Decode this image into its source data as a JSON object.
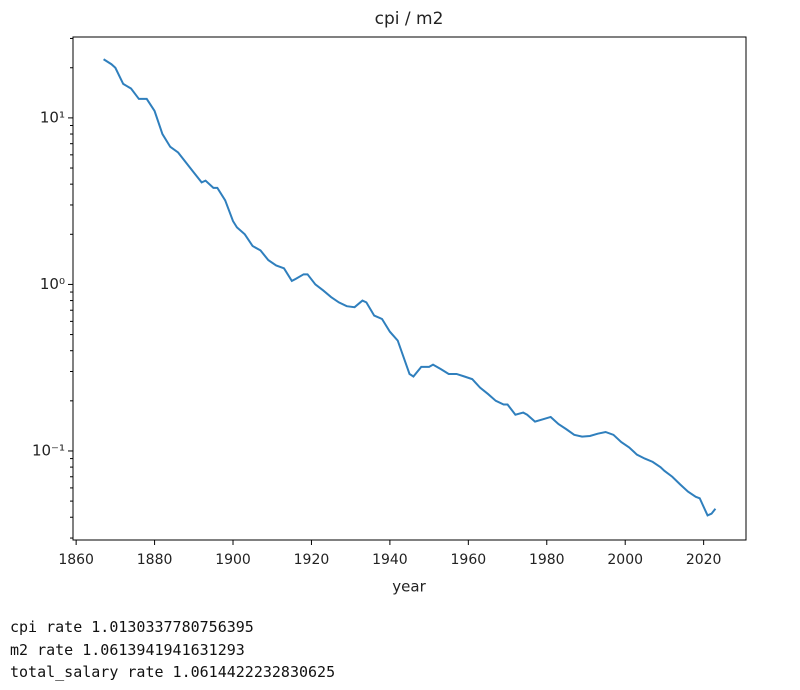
{
  "chart_data": {
    "type": "line",
    "title": "cpi / m2",
    "x_label": "year",
    "log_y": true,
    "color": "#2f7fbd",
    "x": [
      1867,
      1869,
      1870,
      1872,
      1874,
      1876,
      1878,
      1880,
      1882,
      1884,
      1886,
      1888,
      1890,
      1892,
      1893,
      1895,
      1896,
      1898,
      1900,
      1901,
      1903,
      1905,
      1907,
      1909,
      1911,
      1913,
      1915,
      1916,
      1918,
      1919,
      1921,
      1923,
      1925,
      1927,
      1929,
      1931,
      1933,
      1934,
      1936,
      1938,
      1940,
      1942,
      1945,
      1946,
      1948,
      1950,
      1951,
      1953,
      1955,
      1957,
      1959,
      1961,
      1963,
      1965,
      1967,
      1969,
      1970,
      1972,
      1974,
      1975,
      1977,
      1979,
      1981,
      1983,
      1985,
      1987,
      1989,
      1991,
      1993,
      1995,
      1997,
      1999,
      2001,
      2003,
      2005,
      2007,
      2009,
      2010,
      2012,
      2014,
      2016,
      2018,
      2019,
      2021,
      2022,
      2023
    ],
    "values": [
      22.5,
      21,
      20,
      16,
      15,
      13,
      13,
      11,
      8,
      6.7,
      6.2,
      5.4,
      4.7,
      4.1,
      4.2,
      3.8,
      3.8,
      3.2,
      2.4,
      2.2,
      2.0,
      1.7,
      1.6,
      1.4,
      1.3,
      1.25,
      1.05,
      1.08,
      1.15,
      1.15,
      1.0,
      0.92,
      0.84,
      0.78,
      0.74,
      0.73,
      0.8,
      0.78,
      0.65,
      0.62,
      0.52,
      0.46,
      0.29,
      0.28,
      0.32,
      0.32,
      0.33,
      0.31,
      0.29,
      0.29,
      0.28,
      0.27,
      0.24,
      0.22,
      0.2,
      0.19,
      0.19,
      0.165,
      0.17,
      0.165,
      0.15,
      0.155,
      0.16,
      0.145,
      0.135,
      0.125,
      0.122,
      0.123,
      0.127,
      0.13,
      0.125,
      0.113,
      0.105,
      0.095,
      0.09,
      0.086,
      0.08,
      0.076,
      0.07,
      0.063,
      0.057,
      0.053,
      0.052,
      0.041,
      0.042,
      0.045
    ],
    "xlim": [
      1859.2,
      2030.8
    ],
    "xticks": [
      1860,
      1880,
      1900,
      1920,
      1940,
      1960,
      1980,
      2000,
      2020
    ],
    "ylim": [
      0.0292,
      30.6
    ],
    "yticks": [
      {
        "value": 10,
        "label": "10¹"
      },
      {
        "value": 1,
        "label": "10⁰"
      },
      {
        "value": 0.1,
        "label": "10⁻¹"
      }
    ],
    "minor_yticks": [
      0.03,
      0.04,
      0.05,
      0.06,
      0.07,
      0.08,
      0.09,
      0.2,
      0.3,
      0.4,
      0.5,
      0.6,
      0.7,
      0.8,
      0.9,
      2,
      3,
      4,
      5,
      6,
      7,
      8,
      9,
      20,
      30
    ]
  },
  "output_lines": [
    "cpi rate 1.0130337780756395",
    "m2 rate 1.0613941941631293",
    "total_salary rate 1.0614422232830625"
  ]
}
